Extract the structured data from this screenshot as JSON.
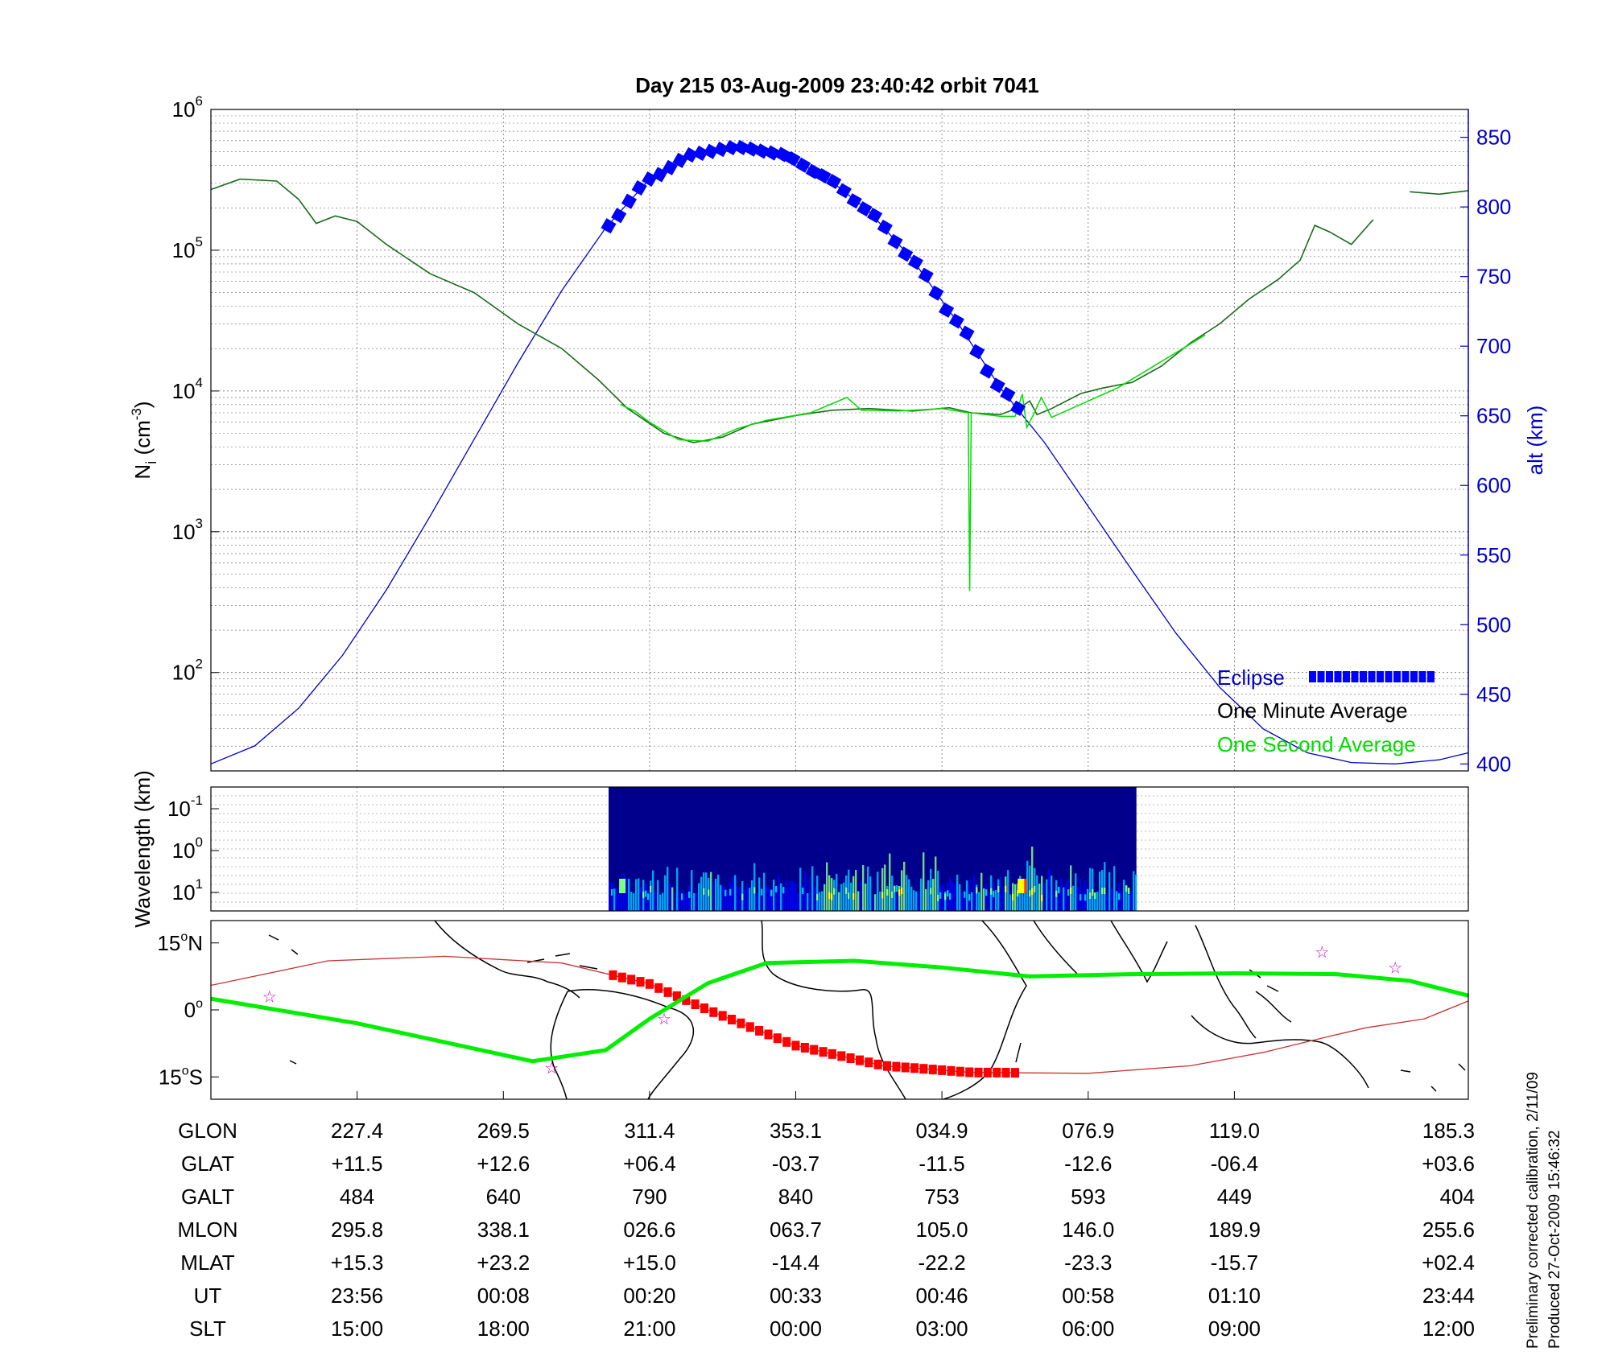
{
  "title": "Day 215  03-Aug-2009 23:40:42   orbit 7041",
  "colors": {
    "density": "#1a6b1a",
    "one_second": "#00dd00",
    "altitude": "#0000c8",
    "eclipse": "#0000ff",
    "eclipse_ground": "#ff0000",
    "track": "#00ee00",
    "mag_track": "#c83232",
    "stars": "#cc00cc",
    "one_minute_label": "#000000"
  },
  "chart_data": [
    {
      "type": "line",
      "panel": "ion-density",
      "title": "Day 215  03-Aug-2009 23:40:42   orbit 7041",
      "ylabel": "N_i (cm^-3)",
      "ylabel_main": "N",
      "ylabel_sub": "i",
      "ylabel_unit_open": " (cm",
      "ylabel_unit_sup": "-3",
      "ylabel_unit_close": ")",
      "yscale": "log",
      "ylim": [
        20,
        1000000
      ],
      "xlim": [
        0,
        8.6
      ],
      "yticks": [
        {
          "value": 100,
          "base": "10",
          "exp": "2"
        },
        {
          "value": 1000,
          "base": "10",
          "exp": "3"
        },
        {
          "value": 10000,
          "base": "10",
          "exp": "4"
        },
        {
          "value": 100000,
          "base": "10",
          "exp": "5"
        },
        {
          "value": 1000000,
          "base": "10",
          "exp": "6"
        }
      ],
      "y2label": "alt (km)",
      "y2lim": [
        395,
        870
      ],
      "y2ticks": [
        "400",
        "450",
        "500",
        "550",
        "600",
        "650",
        "700",
        "750",
        "800",
        "850"
      ],
      "grid": true,
      "legend_position": "bottom-right",
      "legend": [
        {
          "label": "Eclipse",
          "color": "#0000ff",
          "marker": "square"
        },
        {
          "label": "One Minute Average",
          "color": "#000000"
        },
        {
          "label": "One Second Average",
          "color": "#00dd00"
        }
      ],
      "series": [
        {
          "name": "One Minute Average",
          "values": [
            [
              0,
              270000
            ],
            [
              0.2,
              320000
            ],
            [
              0.45,
              310000
            ],
            [
              0.6,
              230000
            ],
            [
              0.72,
              155000
            ],
            [
              0.85,
              175000
            ],
            [
              1.0,
              160000
            ],
            [
              1.2,
              110000
            ],
            [
              1.5,
              68000
            ],
            [
              1.8,
              50000
            ],
            [
              2.1,
              30000
            ],
            [
              2.4,
              20000
            ],
            [
              2.65,
              12000
            ],
            [
              2.85,
              7500
            ],
            [
              3.1,
              5000
            ],
            [
              3.3,
              4300
            ],
            [
              3.5,
              4700
            ],
            [
              3.7,
              5800
            ],
            [
              4.0,
              6700
            ],
            [
              4.25,
              7300
            ],
            [
              4.5,
              7500
            ],
            [
              4.8,
              7200
            ],
            [
              5.05,
              7600
            ],
            [
              5.2,
              7000
            ],
            [
              5.4,
              6800
            ],
            [
              5.55,
              7800
            ],
            [
              5.6,
              8500
            ],
            [
              5.65,
              6800
            ],
            [
              5.75,
              7500
            ],
            [
              5.95,
              9600
            ],
            [
              6.1,
              10500
            ],
            [
              6.3,
              11500
            ],
            [
              6.5,
              15000
            ],
            [
              6.7,
              22000
            ],
            [
              6.9,
              30000
            ],
            [
              7.1,
              45000
            ],
            [
              7.3,
              62000
            ],
            [
              7.45,
              85000
            ],
            [
              7.55,
              150000
            ],
            [
              7.65,
              135000
            ],
            [
              7.8,
              110000
            ],
            [
              7.95,
              165000
            ]
          ]
        },
        {
          "name": "One Second Average",
          "values": [
            [
              2.8,
              8000
            ],
            [
              2.9,
              7200
            ],
            [
              3.0,
              6000
            ],
            [
              3.2,
              4500
            ],
            [
              3.4,
              4400
            ],
            [
              3.6,
              5400
            ],
            [
              3.8,
              6200
            ],
            [
              4.1,
              7000
            ],
            [
              4.35,
              9000
            ],
            [
              4.45,
              7300
            ],
            [
              4.7,
              7200
            ],
            [
              5.0,
              7500
            ],
            [
              5.18,
              7000
            ],
            [
              5.19,
              380
            ],
            [
              5.2,
              7000
            ],
            [
              5.4,
              6600
            ],
            [
              5.5,
              6600
            ],
            [
              5.55,
              9500
            ],
            [
              5.58,
              5500
            ],
            [
              5.62,
              6600
            ],
            [
              5.68,
              9000
            ],
            [
              5.75,
              6500
            ],
            [
              6.2,
              10500
            ],
            [
              6.8,
              25000
            ]
          ]
        },
        {
          "name": "",
          "values": [
            [
              8.2,
              260000
            ],
            [
              8.4,
              250000
            ],
            [
              8.6,
              265000
            ]
          ]
        }
      ],
      "altitude": {
        "x": [
          0,
          0.3,
          0.6,
          0.9,
          1.2,
          1.5,
          1.8,
          2.1,
          2.4,
          2.7,
          3.0,
          3.3,
          3.6,
          3.9,
          4.2,
          4.5,
          4.8,
          5.1,
          5.4,
          5.7,
          6.0,
          6.3,
          6.6,
          6.9,
          7.2,
          7.5,
          7.8,
          8.1,
          8.4,
          8.6
        ],
        "values": [
          400,
          413,
          440,
          478,
          525,
          578,
          633,
          688,
          740,
          785,
          820,
          838,
          843,
          838,
          822,
          797,
          762,
          718,
          670,
          631,
          585,
          539,
          494,
          455,
          425,
          408,
          401,
          400,
          403,
          408
        ]
      },
      "eclipse": {
        "x_start": 2.72,
        "x_end": 5.52
      }
    },
    {
      "type": "heatmap",
      "panel": "spectrogram",
      "ylabel": "Wavelength (km)",
      "yticks": [
        {
          "base": "10",
          "exp": "-1"
        },
        {
          "base": "10",
          "exp": "0"
        },
        {
          "base": "10",
          "exp": "1"
        }
      ],
      "x_start": 2.72,
      "x_end": 6.33,
      "colorscale": [
        "#000080",
        "#0000ff",
        "#00bfff",
        "#7fff7f",
        "#ffff00",
        "#ff4000"
      ]
    },
    {
      "type": "map",
      "panel": "ground-track",
      "yticks": [
        {
          "deg": "15",
          "hemi": "N"
        },
        {
          "deg": "0",
          "hemi": ""
        },
        {
          "deg": "15",
          "hemi": "S"
        }
      ],
      "ylim": [
        -20,
        20
      ],
      "geographic_track": [
        [
          0,
          2.5
        ],
        [
          1.0,
          -3
        ],
        [
          2.2,
          -11.5
        ],
        [
          2.7,
          -9
        ],
        [
          3.0,
          -2
        ],
        [
          3.4,
          6
        ],
        [
          3.8,
          10.5
        ],
        [
          4.4,
          11
        ],
        [
          5.0,
          9.5
        ],
        [
          5.6,
          7.5
        ],
        [
          6.3,
          8
        ],
        [
          7.0,
          8.2
        ],
        [
          7.7,
          8
        ],
        [
          8.2,
          6.5
        ],
        [
          8.6,
          3.2
        ]
      ],
      "magnetic_track": [
        [
          0,
          5.5
        ],
        [
          0.8,
          11
        ],
        [
          1.6,
          12
        ],
        [
          2.4,
          10.5
        ],
        [
          3.0,
          5.8
        ],
        [
          3.4,
          0
        ],
        [
          4.0,
          -8
        ],
        [
          4.6,
          -12.5
        ],
        [
          5.2,
          -14
        ],
        [
          6.0,
          -14.2
        ],
        [
          6.7,
          -12.5
        ],
        [
          7.2,
          -9.5
        ],
        [
          7.6,
          -6.3
        ],
        [
          7.9,
          -4
        ],
        [
          8.3,
          -2
        ],
        [
          8.6,
          2
        ]
      ],
      "eclipse_segment": {
        "x_start": 2.75,
        "x_end": 5.5
      },
      "stars": [
        [
          0.4,
          3
        ],
        [
          2.33,
          -13
        ],
        [
          3.1,
          -2
        ],
        [
          7.6,
          13
        ],
        [
          8.1,
          9.5
        ]
      ]
    }
  ],
  "table": {
    "columns": [
      {
        "x": 1.0
      },
      {
        "x": 2.0
      },
      {
        "x": 3.0
      },
      {
        "x": 4.0
      },
      {
        "x": 5.0
      },
      {
        "x": 6.0
      },
      {
        "x": 7.0
      },
      {
        "x": 8.6
      }
    ],
    "rows": [
      {
        "label": "GLON",
        "values": [
          "227.4",
          "269.5",
          "311.4",
          "353.1",
          "034.9",
          "076.9",
          "119.0",
          "185.3"
        ]
      },
      {
        "label": "GLAT",
        "values": [
          "+11.5",
          "+12.6",
          "+06.4",
          "-03.7",
          "-11.5",
          "-12.6",
          "-06.4",
          "+03.6"
        ]
      },
      {
        "label": "GALT",
        "values": [
          "484",
          "640",
          "790",
          "840",
          "753",
          "593",
          "449",
          "404"
        ]
      },
      {
        "label": "MLON",
        "values": [
          "295.8",
          "338.1",
          "026.6",
          "063.7",
          "105.0",
          "146.0",
          "189.9",
          "255.6"
        ]
      },
      {
        "label": "MLAT",
        "values": [
          "+15.3",
          "+23.2",
          "+15.0",
          "-14.4",
          "-22.2",
          "-23.3",
          "-15.7",
          "+02.4"
        ]
      },
      {
        "label": "UT",
        "values": [
          "23:56",
          "00:08",
          "00:20",
          "00:33",
          "00:46",
          "00:58",
          "01:10",
          "23:44"
        ]
      },
      {
        "label": "SLT",
        "values": [
          "15:00",
          "18:00",
          "21:00",
          "00:00",
          "03:00",
          "06:00",
          "09:00",
          "12:00"
        ]
      }
    ]
  },
  "footer": {
    "calibration": "Preliminary corrected calibration, 2/11/09",
    "produced": "Produced 27-Oct-2009 15:46:32"
  }
}
